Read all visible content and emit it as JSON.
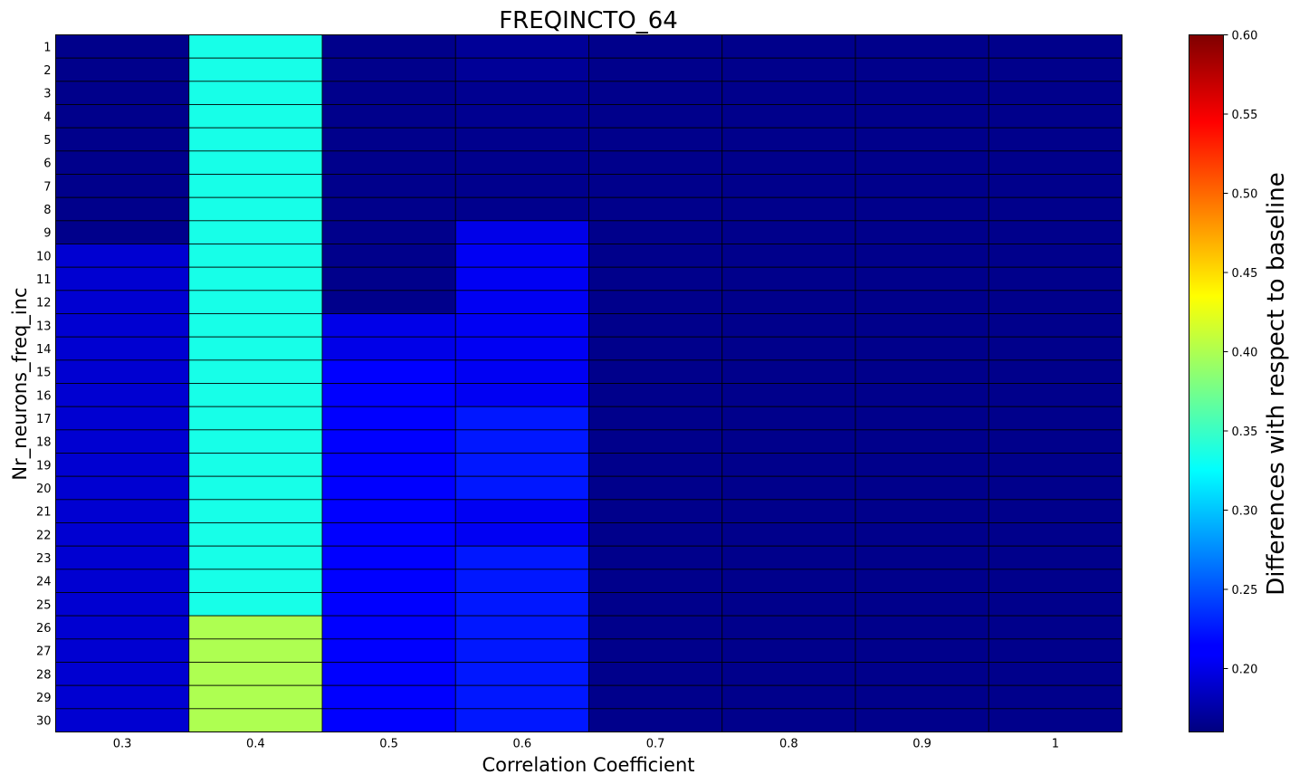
{
  "chart_data": {
    "type": "heatmap",
    "title": "FREQINCTO_64",
    "xlabel": "Correlation Coefficient",
    "ylabel": "Nr_neurons_freq_inc",
    "x": [
      "0.3",
      "0.4",
      "0.5",
      "0.6",
      "0.7",
      "0.8",
      "0.9",
      "1"
    ],
    "y": [
      "1",
      "2",
      "3",
      "4",
      "5",
      "6",
      "7",
      "8",
      "9",
      "10",
      "11",
      "12",
      "13",
      "14",
      "15",
      "16",
      "17",
      "18",
      "19",
      "20",
      "21",
      "22",
      "23",
      "24",
      "25",
      "26",
      "27",
      "28",
      "29",
      "30"
    ],
    "values": [
      [
        0.165,
        0.335,
        0.165,
        0.17,
        0.165,
        0.165,
        0.165,
        0.165
      ],
      [
        0.165,
        0.335,
        0.165,
        0.17,
        0.165,
        0.165,
        0.165,
        0.165
      ],
      [
        0.165,
        0.335,
        0.165,
        0.167,
        0.165,
        0.165,
        0.165,
        0.165
      ],
      [
        0.165,
        0.335,
        0.165,
        0.167,
        0.165,
        0.165,
        0.165,
        0.165
      ],
      [
        0.165,
        0.335,
        0.165,
        0.166,
        0.165,
        0.165,
        0.165,
        0.165
      ],
      [
        0.165,
        0.335,
        0.165,
        0.166,
        0.165,
        0.165,
        0.165,
        0.165
      ],
      [
        0.165,
        0.335,
        0.165,
        0.166,
        0.165,
        0.165,
        0.165,
        0.165
      ],
      [
        0.165,
        0.335,
        0.165,
        0.166,
        0.165,
        0.165,
        0.165,
        0.165
      ],
      [
        0.165,
        0.335,
        0.165,
        0.205,
        0.165,
        0.165,
        0.165,
        0.165
      ],
      [
        0.195,
        0.335,
        0.165,
        0.21,
        0.165,
        0.165,
        0.165,
        0.165
      ],
      [
        0.195,
        0.335,
        0.165,
        0.21,
        0.165,
        0.165,
        0.165,
        0.165
      ],
      [
        0.195,
        0.335,
        0.165,
        0.21,
        0.165,
        0.165,
        0.165,
        0.165
      ],
      [
        0.195,
        0.335,
        0.205,
        0.21,
        0.165,
        0.165,
        0.165,
        0.165
      ],
      [
        0.195,
        0.335,
        0.205,
        0.21,
        0.165,
        0.165,
        0.165,
        0.165
      ],
      [
        0.195,
        0.335,
        0.215,
        0.21,
        0.165,
        0.165,
        0.165,
        0.165
      ],
      [
        0.195,
        0.335,
        0.215,
        0.21,
        0.165,
        0.165,
        0.165,
        0.165
      ],
      [
        0.195,
        0.335,
        0.215,
        0.225,
        0.165,
        0.165,
        0.165,
        0.165
      ],
      [
        0.195,
        0.335,
        0.215,
        0.225,
        0.165,
        0.165,
        0.165,
        0.165
      ],
      [
        0.195,
        0.335,
        0.215,
        0.225,
        0.165,
        0.165,
        0.165,
        0.165
      ],
      [
        0.195,
        0.335,
        0.215,
        0.225,
        0.165,
        0.165,
        0.165,
        0.165
      ],
      [
        0.195,
        0.335,
        0.215,
        0.21,
        0.165,
        0.165,
        0.165,
        0.165
      ],
      [
        0.195,
        0.335,
        0.215,
        0.21,
        0.165,
        0.165,
        0.165,
        0.165
      ],
      [
        0.195,
        0.335,
        0.215,
        0.225,
        0.165,
        0.165,
        0.165,
        0.165
      ],
      [
        0.195,
        0.335,
        0.215,
        0.225,
        0.165,
        0.165,
        0.165,
        0.165
      ],
      [
        0.195,
        0.335,
        0.215,
        0.225,
        0.165,
        0.165,
        0.165,
        0.165
      ],
      [
        0.195,
        0.4,
        0.215,
        0.225,
        0.165,
        0.165,
        0.165,
        0.165
      ],
      [
        0.195,
        0.4,
        0.215,
        0.225,
        0.165,
        0.165,
        0.165,
        0.165
      ],
      [
        0.195,
        0.4,
        0.215,
        0.225,
        0.165,
        0.165,
        0.165,
        0.165
      ],
      [
        0.195,
        0.4,
        0.215,
        0.225,
        0.165,
        0.165,
        0.165,
        0.165
      ],
      [
        0.195,
        0.4,
        0.215,
        0.225,
        0.165,
        0.165,
        0.165,
        0.165
      ]
    ],
    "colormap": "jet",
    "vmin": 0.16,
    "vmax": 0.6,
    "colorbar": {
      "label": "Differences with respect to baseline",
      "ticks": [
        "0.20",
        "0.25",
        "0.30",
        "0.35",
        "0.40",
        "0.45",
        "0.50",
        "0.55",
        "0.60"
      ]
    },
    "grid": true,
    "legend": "none"
  }
}
